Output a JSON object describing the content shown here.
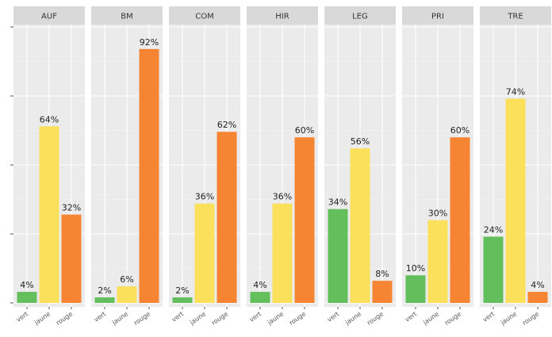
{
  "chart_data": {
    "type": "bar",
    "title": "",
    "xlabel": "",
    "ylabel": "",
    "ylim": [
      0,
      100
    ],
    "grid": true,
    "categories": [
      "vert",
      "jaune",
      "rouge"
    ],
    "colors": {
      "vert": "#63be5c",
      "jaune": "#fbe05b",
      "rouge": "#f58433"
    },
    "panels": [
      {
        "name": "AUF",
        "values": [
          4,
          64,
          32
        ],
        "labels": [
          "4%",
          "64%",
          "32%"
        ]
      },
      {
        "name": "BM",
        "values": [
          2,
          6,
          92
        ],
        "labels": [
          "2%",
          "6%",
          "92%"
        ]
      },
      {
        "name": "COM",
        "values": [
          2,
          36,
          62
        ],
        "labels": [
          "2%",
          "36%",
          "62%"
        ]
      },
      {
        "name": "HIR",
        "values": [
          4,
          36,
          60
        ],
        "labels": [
          "4%",
          "36%",
          "60%"
        ]
      },
      {
        "name": "LEG",
        "values": [
          34,
          56,
          8
        ],
        "labels": [
          "34%",
          "56%",
          "8%"
        ]
      },
      {
        "name": "PRI",
        "values": [
          10,
          30,
          60
        ],
        "labels": [
          "10%",
          "30%",
          "60%"
        ]
      },
      {
        "name": "TRE",
        "values": [
          24,
          74,
          4
        ],
        "labels": [
          "24%",
          "74%",
          "4%"
        ]
      }
    ]
  }
}
